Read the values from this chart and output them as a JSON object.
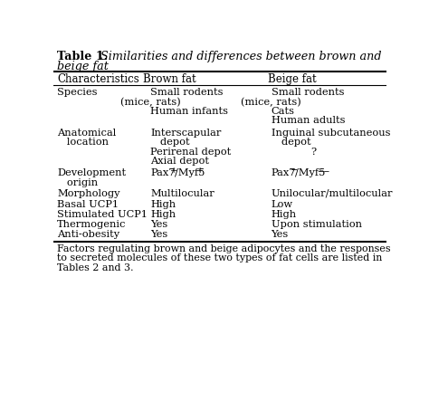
{
  "title_bold": "Table 1.",
  "title_italic": "  Similarities and differences between brown and",
  "title_italic2": "beige fat",
  "headers": [
    "Characteristics",
    "Brown fat",
    "Beige fat"
  ],
  "footer_lines": [
    "Factors regulating brown and beige adipocytes and the responses",
    "to secreted molecules of these two types of fat cells are listed in",
    "Tables 2 and 3."
  ],
  "bg_color": "#ffffff",
  "text_color": "#000000",
  "font_size": 8.2,
  "header_font_size": 8.5
}
